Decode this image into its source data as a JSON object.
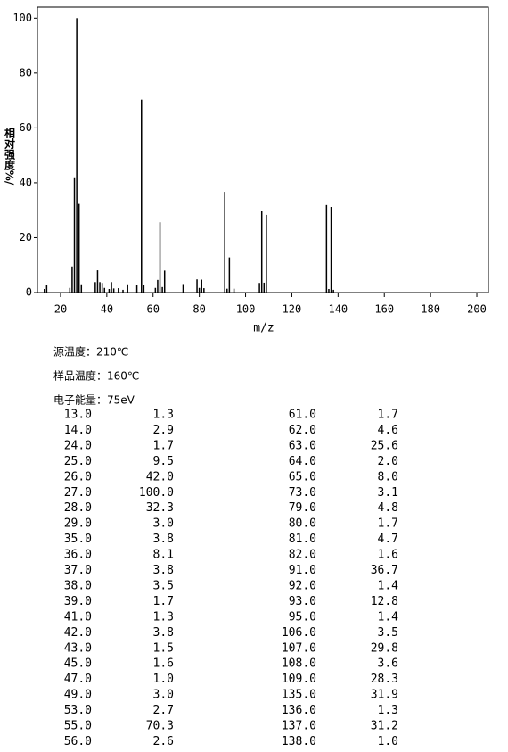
{
  "chart_data": {
    "type": "bar",
    "x": [
      13,
      14,
      24,
      25,
      26,
      27,
      28,
      29,
      35,
      36,
      37,
      38,
      39,
      41,
      42,
      43,
      45,
      47,
      49,
      53,
      55,
      56,
      61,
      62,
      63,
      64,
      65,
      73,
      79,
      80,
      81,
      82,
      91,
      92,
      93,
      95,
      106,
      107,
      108,
      109,
      135,
      136,
      137,
      138
    ],
    "values": [
      1.3,
      2.9,
      1.7,
      9.5,
      42.0,
      100.0,
      32.3,
      3.0,
      3.8,
      8.1,
      3.8,
      3.5,
      1.7,
      1.3,
      3.8,
      1.5,
      1.6,
      1.0,
      3.0,
      2.7,
      70.3,
      2.6,
      1.7,
      4.6,
      25.6,
      2.0,
      8.0,
      3.1,
      4.8,
      1.7,
      4.7,
      1.6,
      36.7,
      1.4,
      12.8,
      1.4,
      3.5,
      29.8,
      3.6,
      28.3,
      31.9,
      1.3,
      31.2,
      1.0
    ],
    "color": "#000000",
    "xlim": [
      10,
      205
    ],
    "xticks": [
      20,
      40,
      60,
      80,
      100,
      120,
      140,
      160,
      180,
      200
    ],
    "ylim": [
      0,
      104
    ],
    "yticks": [
      0,
      20,
      40,
      60,
      80,
      100
    ],
    "xlabel": "m/z",
    "ylabel": "相对强度%/"
  },
  "info": [
    "源温度：210℃",
    "样品温度：160℃",
    "电子能量：75eV"
  ],
  "table": {
    "rows": [
      [
        "13.0",
        "1.3",
        "61.0",
        "1.7"
      ],
      [
        "14.0",
        "2.9",
        "62.0",
        "4.6"
      ],
      [
        "24.0",
        "1.7",
        "63.0",
        "25.6"
      ],
      [
        "25.0",
        "9.5",
        "64.0",
        "2.0"
      ],
      [
        "26.0",
        "42.0",
        "65.0",
        "8.0"
      ],
      [
        "27.0",
        "100.0",
        "73.0",
        "3.1"
      ],
      [
        "28.0",
        "32.3",
        "79.0",
        "4.8"
      ],
      [
        "29.0",
        "3.0",
        "80.0",
        "1.7"
      ],
      [
        "35.0",
        "3.8",
        "81.0",
        "4.7"
      ],
      [
        "36.0",
        "8.1",
        "82.0",
        "1.6"
      ],
      [
        "37.0",
        "3.8",
        "91.0",
        "36.7"
      ],
      [
        "38.0",
        "3.5",
        "92.0",
        "1.4"
      ],
      [
        "39.0",
        "1.7",
        "93.0",
        "12.8"
      ],
      [
        "41.0",
        "1.3",
        "95.0",
        "1.4"
      ],
      [
        "42.0",
        "3.8",
        "106.0",
        "3.5"
      ],
      [
        "43.0",
        "1.5",
        "107.0",
        "29.8"
      ],
      [
        "45.0",
        "1.6",
        "108.0",
        "3.6"
      ],
      [
        "47.0",
        "1.0",
        "109.0",
        "28.3"
      ],
      [
        "49.0",
        "3.0",
        "135.0",
        "31.9"
      ],
      [
        "53.0",
        "2.7",
        "136.0",
        "1.3"
      ],
      [
        "55.0",
        "70.3",
        "137.0",
        "31.2"
      ],
      [
        "56.0",
        "2.6",
        "138.0",
        "1.0"
      ]
    ]
  }
}
